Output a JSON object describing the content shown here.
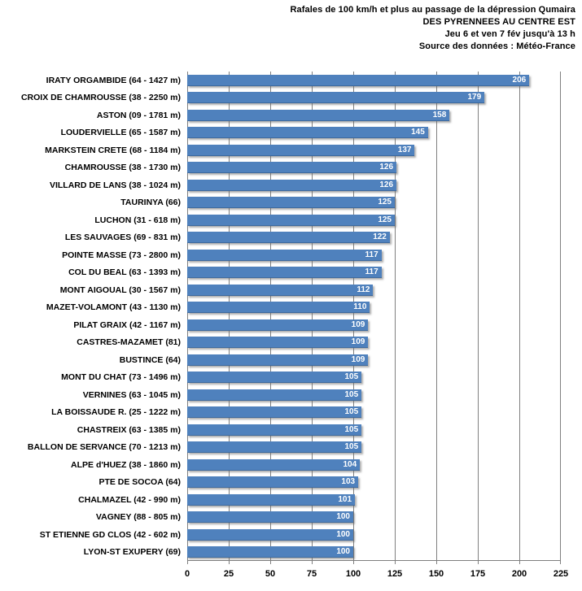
{
  "title": {
    "line1": "Rafales de 100 km/h et plus au passage de la dépression Qumaira",
    "line2": "DES PYRENNEES AU CENTRE EST",
    "line3": "Jeu 6 et ven 7 fév jusqu'à 13 h",
    "line4": "Source des données : Météo-France"
  },
  "chart_data": {
    "type": "bar",
    "orientation": "horizontal",
    "title": "Rafales de 100 km/h et plus au passage de la dépression Qumaira — DES PYRENNEES AU CENTRE EST — Jeu 6 et ven 7 fév jusqu'à 13 h — Source des données : Météo-France",
    "categories": [
      "IRATY ORGAMBIDE (64 - 1427 m)",
      "CROIX DE CHAMROUSSE (38 - 2250 m)",
      "ASTON (09 - 1781 m)",
      "LOUDERVIELLE (65 - 1587 m)",
      "MARKSTEIN CRETE (68 - 1184 m)",
      "CHAMROUSSE (38 - 1730 m)",
      "VILLARD DE LANS (38 - 1024 m)",
      "TAURINYA (66)",
      "LUCHON (31 - 618 m)",
      "LES SAUVAGES (69 - 831 m)",
      "POINTE  MASSE (73 - 2800 m)",
      "COL DU BEAL (63 - 1393 m)",
      "MONT AIGOUAL (30 - 1567 m)",
      "MAZET-VOLAMONT (43 - 1130 m)",
      "PILAT GRAIX (42 - 1167 m)",
      "CASTRES-MAZAMET (81)",
      "BUSTINCE (64)",
      "MONT DU CHAT (73 - 1496 m)",
      "VERNINES (63 - 1045 m)",
      "LA BOISSAUDE R. (25 - 1222 m)",
      "CHASTREIX (63 - 1385 m)",
      "BALLON DE SERVANCE (70 - 1213 m)",
      "ALPE d'HUEZ (38 - 1860 m)",
      "PTE DE SOCOA (64)",
      "CHALMAZEL (42 - 990 m)",
      "VAGNEY (88 - 805 m)",
      "ST ETIENNE GD CLOS (42 - 602 m)",
      "LYON-ST EXUPERY (69)"
    ],
    "values": [
      206,
      179,
      158,
      145,
      137,
      126,
      126,
      125,
      125,
      122,
      117,
      117,
      112,
      110,
      109,
      109,
      109,
      105,
      105,
      105,
      105,
      105,
      104,
      103,
      101,
      100,
      100,
      100
    ],
    "xlabel": "",
    "ylabel": "",
    "xlim": [
      0,
      225
    ],
    "x_ticks": [
      0,
      25,
      50,
      75,
      100,
      125,
      150,
      175,
      200,
      225
    ],
    "grid": "vertical",
    "legend": "none",
    "colors": {
      "bar": "#4f81bd",
      "bar_value_text": "#ffffff",
      "gridline": "#7f7f7f",
      "axis_text": "#000000"
    }
  }
}
